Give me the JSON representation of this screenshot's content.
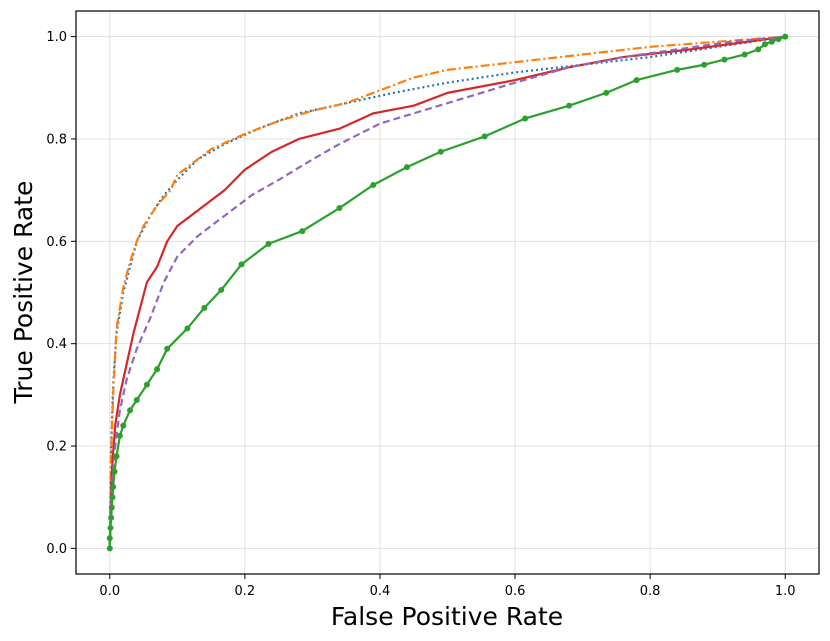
{
  "chart_data": {
    "type": "line",
    "title": "",
    "xlabel": "False Positive Rate",
    "ylabel": "True Positive Rate",
    "xlim": [
      -0.05,
      1.05
    ],
    "ylim": [
      -0.05,
      1.05
    ],
    "xticks": [
      "0.0",
      "0.2",
      "0.4",
      "0.6",
      "0.8",
      "1.0"
    ],
    "yticks": [
      "0.0",
      "0.2",
      "0.4",
      "0.6",
      "0.8",
      "1.0"
    ],
    "grid": true,
    "legend": "none",
    "series": [
      {
        "color": "#1f77b4",
        "style": "dotted",
        "x": [
          0.0,
          0.002,
          0.005,
          0.01,
          0.02,
          0.03,
          0.04,
          0.06,
          0.08,
          0.1,
          0.13,
          0.17,
          0.22,
          0.28,
          0.35,
          0.42,
          0.5,
          0.6,
          0.7,
          0.8,
          0.9,
          0.95,
          1.0
        ],
        "y": [
          0.0,
          0.2,
          0.32,
          0.42,
          0.5,
          0.55,
          0.6,
          0.65,
          0.69,
          0.72,
          0.76,
          0.79,
          0.82,
          0.85,
          0.87,
          0.89,
          0.91,
          0.93,
          0.945,
          0.96,
          0.98,
          0.99,
          1.0
        ]
      },
      {
        "color": "#ff7f0e",
        "style": "dashdot",
        "x": [
          0.0,
          0.002,
          0.005,
          0.01,
          0.02,
          0.03,
          0.04,
          0.05,
          0.07,
          0.09,
          0.1,
          0.12,
          0.15,
          0.2,
          0.25,
          0.3,
          0.35,
          0.4,
          0.45,
          0.5,
          0.6,
          0.7,
          0.8,
          0.9,
          1.0
        ],
        "y": [
          0.0,
          0.18,
          0.3,
          0.43,
          0.51,
          0.56,
          0.6,
          0.63,
          0.67,
          0.7,
          0.73,
          0.75,
          0.78,
          0.81,
          0.835,
          0.855,
          0.87,
          0.895,
          0.92,
          0.935,
          0.95,
          0.965,
          0.98,
          0.99,
          1.0
        ]
      },
      {
        "color": "#d62728",
        "style": "solid",
        "x": [
          0.0,
          0.003,
          0.008,
          0.015,
          0.025,
          0.035,
          0.045,
          0.055,
          0.07,
          0.085,
          0.1,
          0.14,
          0.17,
          0.2,
          0.24,
          0.28,
          0.34,
          0.39,
          0.45,
          0.5,
          0.6,
          0.68,
          0.76,
          0.86,
          1.0
        ],
        "y": [
          0.0,
          0.15,
          0.24,
          0.3,
          0.36,
          0.42,
          0.47,
          0.52,
          0.55,
          0.6,
          0.63,
          0.67,
          0.7,
          0.74,
          0.775,
          0.8,
          0.82,
          0.85,
          0.865,
          0.89,
          0.915,
          0.94,
          0.96,
          0.975,
          1.0
        ]
      },
      {
        "color": "#9467bd",
        "style": "dashed",
        "x": [
          0.0,
          0.003,
          0.008,
          0.015,
          0.025,
          0.04,
          0.06,
          0.08,
          0.1,
          0.13,
          0.17,
          0.21,
          0.25,
          0.3,
          0.34,
          0.4,
          0.45,
          0.5,
          0.55,
          0.6,
          0.68,
          0.76,
          0.84,
          0.92,
          1.0
        ],
        "y": [
          0.0,
          0.12,
          0.2,
          0.27,
          0.33,
          0.39,
          0.45,
          0.52,
          0.57,
          0.61,
          0.65,
          0.69,
          0.72,
          0.76,
          0.79,
          0.83,
          0.85,
          0.87,
          0.89,
          0.91,
          0.94,
          0.96,
          0.975,
          0.99,
          1.0
        ]
      },
      {
        "color": "#2ca02c",
        "style": "solid-markers",
        "markers": true,
        "x": [
          0.0,
          0.0,
          0.001,
          0.002,
          0.003,
          0.004,
          0.005,
          0.007,
          0.01,
          0.015,
          0.02,
          0.03,
          0.04,
          0.055,
          0.07,
          0.085,
          0.115,
          0.14,
          0.165,
          0.195,
          0.235,
          0.285,
          0.34,
          0.39,
          0.44,
          0.49,
          0.555,
          0.615,
          0.68,
          0.735,
          0.78,
          0.84,
          0.88,
          0.91,
          0.94,
          0.96,
          0.97,
          0.98,
          0.99,
          1.0
        ],
        "y": [
          0.0,
          0.02,
          0.04,
          0.06,
          0.08,
          0.1,
          0.12,
          0.15,
          0.18,
          0.22,
          0.24,
          0.27,
          0.29,
          0.32,
          0.35,
          0.39,
          0.43,
          0.47,
          0.505,
          0.555,
          0.595,
          0.62,
          0.665,
          0.71,
          0.745,
          0.775,
          0.805,
          0.84,
          0.865,
          0.89,
          0.915,
          0.935,
          0.945,
          0.955,
          0.965,
          0.975,
          0.985,
          0.99,
          0.995,
          1.0
        ]
      }
    ]
  }
}
